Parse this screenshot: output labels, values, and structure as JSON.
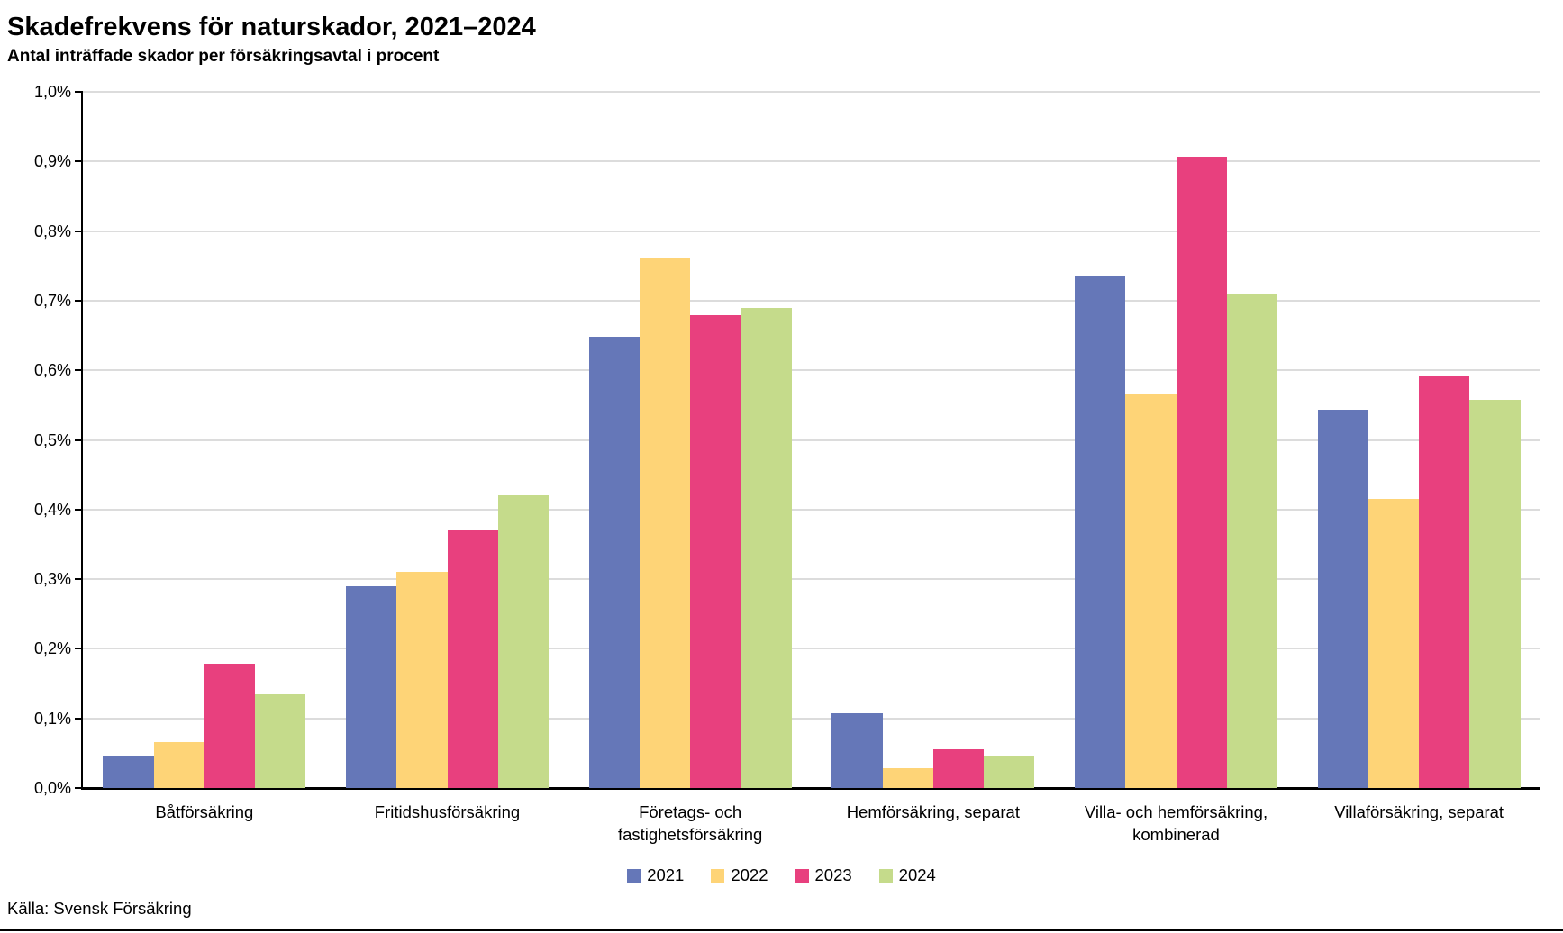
{
  "title": "Skadefrekvens för naturskador, 2021–2024",
  "subtitle": "Antal inträffade skador per försäkringsavtal i procent",
  "source": "Källa: Svensk Försäkring",
  "colors": {
    "series_2021": "#6577B8",
    "series_2022": "#FED477",
    "series_2023": "#E8407E",
    "series_2024": "#C5DB8B",
    "gridline": "#DCDCDC",
    "axis": "#000000"
  },
  "chart_data": {
    "type": "bar",
    "title": "Skadefrekvens för naturskador, 2021–2024",
    "subtitle": "Antal inträffade skador per försäkringsavtal i procent",
    "xlabel": "",
    "ylabel": "Antal inträffade skador per försäkringsavtal i procent",
    "categories": [
      "Båtförsäkring",
      "Fritidshusförsäkring",
      "Företags- och fastighetsförsäkring",
      "Hemförsäkring, separat",
      "Villa- och hemförsäkring, kombinerad",
      "Villaförsäkring, separat"
    ],
    "series": [
      {
        "name": "2021",
        "color": "#6577B8",
        "values": [
          0.045,
          0.29,
          0.648,
          0.107,
          0.736,
          0.543
        ]
      },
      {
        "name": "2022",
        "color": "#FED477",
        "values": [
          0.066,
          0.31,
          0.762,
          0.029,
          0.565,
          0.415
        ]
      },
      {
        "name": "2023",
        "color": "#E8407E",
        "values": [
          0.178,
          0.371,
          0.679,
          0.055,
          0.907,
          0.593
        ]
      },
      {
        "name": "2024",
        "color": "#C5DB8B",
        "values": [
          0.134,
          0.421,
          0.69,
          0.047,
          0.71,
          0.557
        ]
      }
    ],
    "ylim": [
      0.0,
      1.0
    ],
    "ytick_step": 0.1,
    "ytick_labels": [
      "0,0%",
      "0,1%",
      "0,2%",
      "0,3%",
      "0,4%",
      "0,5%",
      "0,6%",
      "0,7%",
      "0,8%",
      "0,9%",
      "1,0%"
    ],
    "grid": true,
    "legend_position": "bottom",
    "legend_entries": [
      "2021",
      "2022",
      "2023",
      "2024"
    ]
  }
}
